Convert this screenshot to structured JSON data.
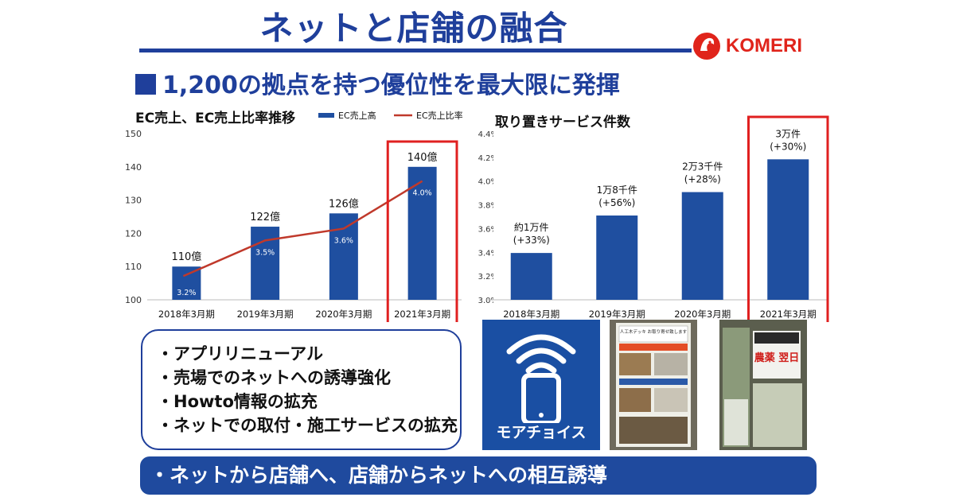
{
  "title": "ネットと店舗の融合",
  "logo": {
    "text": "KOMERI",
    "brand_color": "#e0241b"
  },
  "subtitle": "1,200の拠点を持つ優位性を最大限に発揮",
  "colors": {
    "primary": "#1f3f9b",
    "bar": "#1f4fa0",
    "line": "#c0392b",
    "highlight": "#e02020"
  },
  "chart_data": [
    {
      "type": "bar",
      "title": "EC売上、EC売上比率推移",
      "categories": [
        "2018年3月期",
        "2019年3月期",
        "2020年3月期",
        "2021年3月期"
      ],
      "series": [
        {
          "name": "EC売上高",
          "type": "bar",
          "axis": "left",
          "values": [
            110,
            122,
            126,
            140
          ],
          "labels": [
            "110億",
            "122億",
            "126億",
            "140億"
          ]
        },
        {
          "name": "EC売上比率",
          "type": "line",
          "axis": "right",
          "values": [
            3.2,
            3.5,
            3.6,
            4.0
          ],
          "labels": [
            "3.2%",
            "3.5%",
            "3.6%",
            "4.0%"
          ]
        }
      ],
      "ylim": [
        100,
        150
      ],
      "y_ticks": [
        "150",
        "140",
        "130",
        "120",
        "110",
        "100"
      ],
      "y2lim": [
        3.0,
        4.4
      ],
      "y2_ticks": [
        "4.4%",
        "4.2%",
        "4.0%",
        "3.8%",
        "3.6%",
        "3.4%",
        "3.2%",
        "3.0%"
      ],
      "highlight_category": "2021年3月期",
      "legend": "top-right"
    },
    {
      "type": "bar",
      "title": "取り置きサービス件数",
      "categories": [
        "2018年3月期",
        "2019年3月期",
        "2020年3月期",
        "2021年3月期"
      ],
      "series": [
        {
          "values": [
            10000,
            18000,
            23000,
            30000
          ],
          "labels": [
            "約1万件",
            "1万8千件",
            "2万3千件",
            "3万件"
          ],
          "growth": [
            "(+33%)",
            "(+56%)",
            "(+28%)",
            "(+30%)"
          ]
        }
      ],
      "ylim": [
        0,
        36000
      ],
      "highlight_category": "2021年3月期"
    }
  ],
  "bullets": [
    "・アプリリニューアル",
    "・売場でのネットへの誘導強化",
    "・Howto情報の拡充",
    "・ネットでの取付・施工サービスの拡充"
  ],
  "app": {
    "label": "モアチョイス",
    "icon": "smartphone-wifi-icon"
  },
  "photos": [
    {
      "caption": "人工木デッキ お取り寄せ致します"
    },
    {
      "caption": "農薬 翌日"
    }
  ],
  "banner": "・ネットから店舗へ、店舗からネットへの相互誘導"
}
